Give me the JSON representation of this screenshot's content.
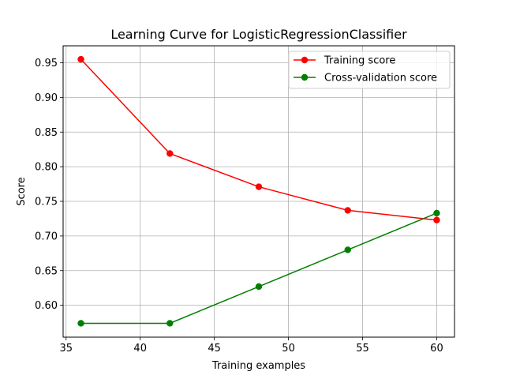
{
  "chart_data": {
    "type": "line",
    "title": "Learning Curve for LogisticRegressionClassifier",
    "xlabel": "Training examples",
    "ylabel": "Score",
    "xlim": [
      34.8,
      61.2
    ],
    "ylim": [
      0.554,
      0.9745
    ],
    "xticks": [
      35,
      40,
      45,
      50,
      55,
      60
    ],
    "yticks": [
      0.6,
      0.65,
      0.7,
      0.75,
      0.8,
      0.85,
      0.9,
      0.95
    ],
    "x": [
      36,
      42,
      48,
      54,
      60
    ],
    "grid": true,
    "legend_position": "top-right",
    "series": [
      {
        "name": "Training score",
        "color": "#ff0000",
        "marker": "circle",
        "values": [
          0.955,
          0.819,
          0.771,
          0.737,
          0.723
        ]
      },
      {
        "name": "Cross-validation score",
        "color": "#008000",
        "marker": "circle",
        "values": [
          0.574,
          0.574,
          0.627,
          0.68,
          0.733
        ]
      }
    ]
  }
}
